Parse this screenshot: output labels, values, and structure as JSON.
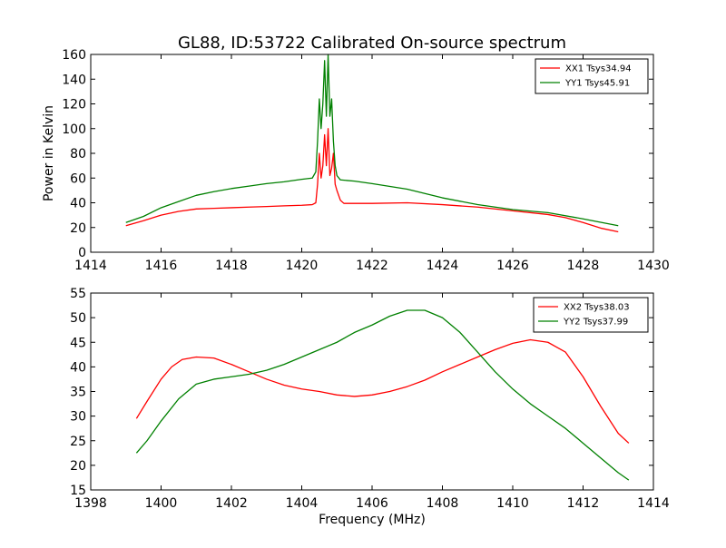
{
  "chart_data": [
    {
      "type": "line",
      "title": "GL88, ID:53722 Calibrated On-source spectrum",
      "xlabel": "",
      "ylabel": "Power in Kelvin",
      "xlim": [
        1414,
        1430
      ],
      "ylim": [
        0,
        160
      ],
      "xticks": [
        "1414",
        "1416",
        "1418",
        "1420",
        "1422",
        "1424",
        "1426",
        "1428",
        "1430"
      ],
      "yticks": [
        "0",
        "20",
        "40",
        "60",
        "80",
        "100",
        "120",
        "140",
        "160"
      ],
      "grid": false,
      "legend_position": "top-right",
      "series": [
        {
          "name": "XX1 Tsys34.94",
          "color": "#ff0000",
          "points": [
            [
              1415.0,
              21.5
            ],
            [
              1415.5,
              25.5
            ],
            [
              1416.0,
              30.0
            ],
            [
              1416.5,
              33.0
            ],
            [
              1417.0,
              35.0
            ],
            [
              1417.5,
              35.5
            ],
            [
              1418.0,
              36.0
            ],
            [
              1418.5,
              36.5
            ],
            [
              1419.0,
              37.0
            ],
            [
              1419.5,
              37.5
            ],
            [
              1420.0,
              38.0
            ],
            [
              1420.3,
              38.5
            ],
            [
              1420.4,
              40.0
            ],
            [
              1420.45,
              55.0
            ],
            [
              1420.5,
              80.0
            ],
            [
              1420.55,
              60.0
            ],
            [
              1420.6,
              70.0
            ],
            [
              1420.65,
              95.0
            ],
            [
              1420.7,
              70.0
            ],
            [
              1420.75,
              100.0
            ],
            [
              1420.8,
              62.0
            ],
            [
              1420.85,
              68.0
            ],
            [
              1420.9,
              80.0
            ],
            [
              1420.95,
              55.0
            ],
            [
              1421.0,
              50.0
            ],
            [
              1421.1,
              42.0
            ],
            [
              1421.2,
              39.5
            ],
            [
              1421.5,
              39.5
            ],
            [
              1422.0,
              39.5
            ],
            [
              1423.0,
              40.0
            ],
            [
              1424.0,
              38.5
            ],
            [
              1425.0,
              36.5
            ],
            [
              1426.0,
              33.5
            ],
            [
              1427.0,
              30.5
            ],
            [
              1427.5,
              28.0
            ],
            [
              1428.0,
              24.0
            ],
            [
              1428.5,
              19.5
            ],
            [
              1429.0,
              16.5
            ]
          ]
        },
        {
          "name": "YY1 Tsys45.91",
          "color": "#008000",
          "points": [
            [
              1415.0,
              24.0
            ],
            [
              1415.5,
              29.0
            ],
            [
              1416.0,
              36.0
            ],
            [
              1416.5,
              41.0
            ],
            [
              1417.0,
              46.0
            ],
            [
              1417.5,
              49.0
            ],
            [
              1418.0,
              51.5
            ],
            [
              1418.5,
              53.5
            ],
            [
              1419.0,
              55.5
            ],
            [
              1419.5,
              57.0
            ],
            [
              1420.0,
              59.0
            ],
            [
              1420.3,
              60.0
            ],
            [
              1420.4,
              65.0
            ],
            [
              1420.45,
              90.0
            ],
            [
              1420.5,
              124.0
            ],
            [
              1420.55,
              100.0
            ],
            [
              1420.6,
              120.0
            ],
            [
              1420.65,
              155.0
            ],
            [
              1420.7,
              110.0
            ],
            [
              1420.75,
              160.0
            ],
            [
              1420.8,
              110.0
            ],
            [
              1420.85,
              124.0
            ],
            [
              1420.9,
              90.0
            ],
            [
              1420.95,
              70.0
            ],
            [
              1421.0,
              62.0
            ],
            [
              1421.1,
              58.5
            ],
            [
              1421.5,
              57.5
            ],
            [
              1422.0,
              55.5
            ],
            [
              1423.0,
              51.0
            ],
            [
              1424.0,
              44.0
            ],
            [
              1425.0,
              38.5
            ],
            [
              1426.0,
              34.5
            ],
            [
              1427.0,
              32.0
            ],
            [
              1428.0,
              27.0
            ],
            [
              1429.0,
              21.5
            ]
          ]
        }
      ]
    },
    {
      "type": "line",
      "title": "",
      "xlabel": "Frequency (MHz)",
      "ylabel": "",
      "xlim": [
        1398,
        1414
      ],
      "ylim": [
        15,
        55
      ],
      "xticks": [
        "1398",
        "1400",
        "1402",
        "1404",
        "1406",
        "1408",
        "1410",
        "1412",
        "1414"
      ],
      "yticks": [
        "15",
        "20",
        "25",
        "30",
        "35",
        "40",
        "45",
        "50",
        "55"
      ],
      "grid": false,
      "legend_position": "top-right",
      "series": [
        {
          "name": "XX2 Tsys38.03",
          "color": "#ff0000",
          "points": [
            [
              1399.3,
              29.5
            ],
            [
              1399.6,
              33.0
            ],
            [
              1400.0,
              37.5
            ],
            [
              1400.3,
              40.0
            ],
            [
              1400.6,
              41.5
            ],
            [
              1401.0,
              42.0
            ],
            [
              1401.5,
              41.8
            ],
            [
              1402.0,
              40.5
            ],
            [
              1402.5,
              39.0
            ],
            [
              1403.0,
              37.5
            ],
            [
              1403.5,
              36.3
            ],
            [
              1404.0,
              35.5
            ],
            [
              1404.5,
              35.0
            ],
            [
              1405.0,
              34.3
            ],
            [
              1405.5,
              34.0
            ],
            [
              1406.0,
              34.3
            ],
            [
              1406.5,
              35.0
            ],
            [
              1407.0,
              36.0
            ],
            [
              1407.5,
              37.3
            ],
            [
              1408.0,
              39.0
            ],
            [
              1408.5,
              40.5
            ],
            [
              1409.0,
              42.0
            ],
            [
              1409.5,
              43.5
            ],
            [
              1410.0,
              44.8
            ],
            [
              1410.5,
              45.5
            ],
            [
              1411.0,
              45.0
            ],
            [
              1411.5,
              43.0
            ],
            [
              1412.0,
              38.0
            ],
            [
              1412.5,
              32.0
            ],
            [
              1413.0,
              26.5
            ],
            [
              1413.3,
              24.5
            ]
          ]
        },
        {
          "name": "YY2 Tsys37.99",
          "color": "#008000",
          "points": [
            [
              1399.3,
              22.5
            ],
            [
              1399.6,
              25.0
            ],
            [
              1400.0,
              29.0
            ],
            [
              1400.5,
              33.5
            ],
            [
              1401.0,
              36.5
            ],
            [
              1401.5,
              37.5
            ],
            [
              1402.0,
              38.0
            ],
            [
              1402.5,
              38.5
            ],
            [
              1403.0,
              39.3
            ],
            [
              1403.5,
              40.5
            ],
            [
              1404.0,
              42.0
            ],
            [
              1404.5,
              43.5
            ],
            [
              1405.0,
              45.0
            ],
            [
              1405.5,
              47.0
            ],
            [
              1406.0,
              48.5
            ],
            [
              1406.5,
              50.3
            ],
            [
              1407.0,
              51.5
            ],
            [
              1407.5,
              51.5
            ],
            [
              1408.0,
              50.0
            ],
            [
              1408.5,
              47.0
            ],
            [
              1409.0,
              43.0
            ],
            [
              1409.5,
              39.0
            ],
            [
              1410.0,
              35.5
            ],
            [
              1410.5,
              32.5
            ],
            [
              1411.0,
              30.0
            ],
            [
              1411.5,
              27.5
            ],
            [
              1412.0,
              24.5
            ],
            [
              1412.5,
              21.5
            ],
            [
              1413.0,
              18.5
            ],
            [
              1413.3,
              17.0
            ]
          ]
        }
      ]
    }
  ]
}
